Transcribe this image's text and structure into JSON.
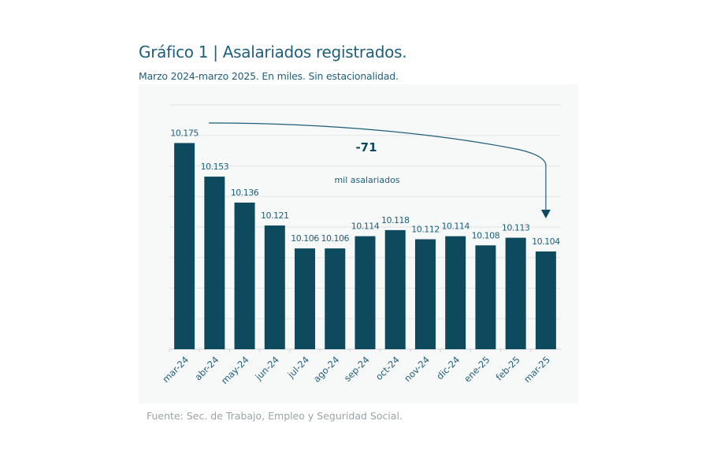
{
  "chart_data": {
    "type": "bar",
    "title": "Gráfico 1 | Asalariados registrados.",
    "subtitle": "Marzo 2024-marzo 2025. En miles. Sin estacionalidad.",
    "categories": [
      "mar-24",
      "abr-24",
      "may-24",
      "jun-24",
      "jul-24",
      "ago-24",
      "sep-24",
      "oct-24",
      "nov-24",
      "dic-24",
      "ene-25",
      "feb-25",
      "mar-25"
    ],
    "values": [
      10175,
      10153,
      10136,
      10121,
      10106,
      10106,
      10114,
      10118,
      10112,
      10114,
      10108,
      10113,
      10104
    ],
    "value_labels": [
      "10.175",
      "10.153",
      "10.136",
      "10.121",
      "10.106",
      "10.106",
      "10.114",
      "10.118",
      "10.112",
      "10.114",
      "10.108",
      "10.113",
      "10.104"
    ],
    "ylim": [
      10040,
      10200
    ],
    "ytick_step": 20,
    "y_axis_labels_shown": false,
    "grid": true,
    "annotation": {
      "value": "-71",
      "label": "mil asalariados",
      "from": "mar-24",
      "to": "mar-25"
    },
    "colors": {
      "bar": "#0d4a5e",
      "text": "#1f5f7a",
      "grid": "#e2e4e5"
    },
    "source": "Fuente: Sec. de Trabajo, Empleo y Seguridad Social."
  }
}
